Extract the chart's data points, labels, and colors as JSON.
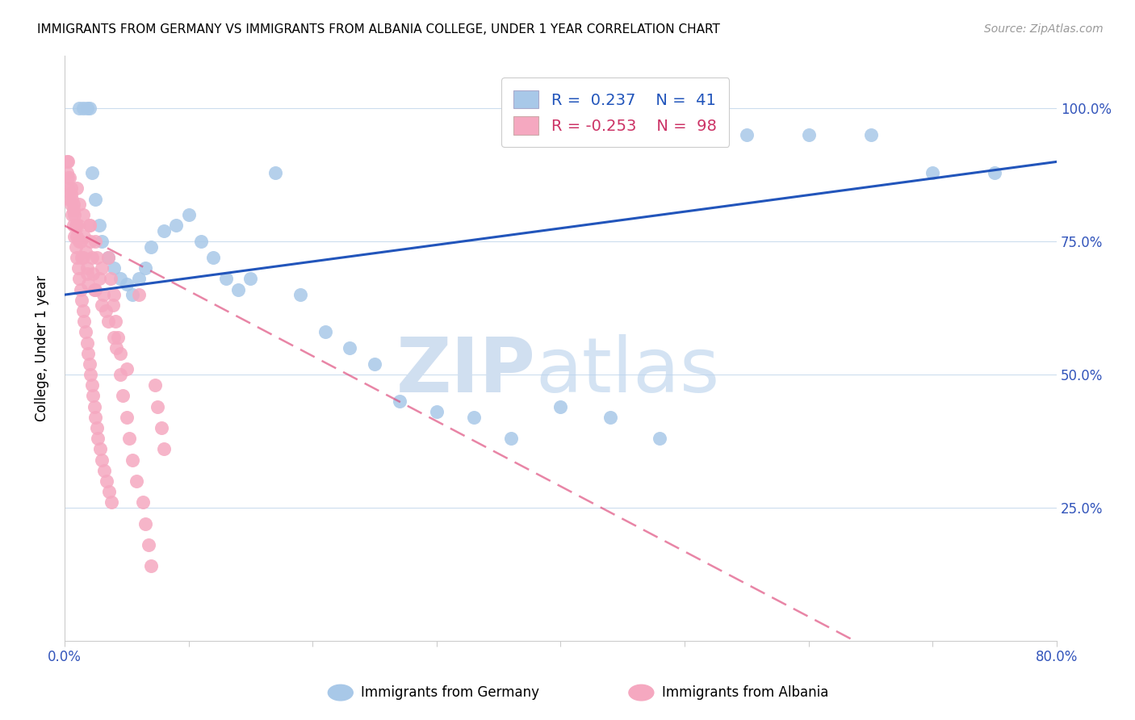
{
  "title": "IMMIGRANTS FROM GERMANY VS IMMIGRANTS FROM ALBANIA COLLEGE, UNDER 1 YEAR CORRELATION CHART",
  "source": "Source: ZipAtlas.com",
  "ylabel": "College, Under 1 year",
  "xlim": [
    0.0,
    80.0
  ],
  "ylim": [
    0.0,
    110.0
  ],
  "x_tick_positions": [
    0,
    10,
    20,
    30,
    40,
    50,
    60,
    70,
    80
  ],
  "x_tick_labels": [
    "0.0%",
    "",
    "",
    "",
    "",
    "",
    "",
    "",
    "80.0%"
  ],
  "y_tick_positions": [
    0,
    25,
    50,
    75,
    100
  ],
  "y_tick_labels_right": [
    "",
    "25.0%",
    "50.0%",
    "75.0%",
    "100.0%"
  ],
  "legend_R_germany": "0.237",
  "legend_N_germany": "41",
  "legend_R_albania": "-0.253",
  "legend_N_albania": "98",
  "germany_face_color": "#a8c8e8",
  "albania_face_color": "#f5a8c0",
  "germany_line_color": "#2255bb",
  "albania_line_color": "#dd4477",
  "legend_germany_label": "Immigrants from Germany",
  "legend_albania_label": "Immigrants from Albania",
  "germany_x": [
    1.2,
    1.5,
    1.8,
    2.0,
    2.2,
    2.5,
    2.8,
    3.0,
    3.5,
    4.0,
    4.5,
    5.0,
    5.5,
    6.0,
    6.5,
    7.0,
    8.0,
    9.0,
    10.0,
    11.0,
    12.0,
    13.0,
    14.0,
    15.0,
    17.0,
    19.0,
    21.0,
    23.0,
    25.0,
    27.0,
    30.0,
    33.0,
    36.0,
    40.0,
    44.0,
    48.0,
    55.0,
    60.0,
    65.0,
    70.0,
    75.0
  ],
  "germany_y": [
    100,
    100,
    100,
    100,
    88,
    83,
    78,
    75,
    72,
    70,
    68,
    67,
    65,
    68,
    70,
    74,
    77,
    78,
    80,
    75,
    72,
    68,
    66,
    68,
    88,
    65,
    58,
    55,
    52,
    45,
    43,
    42,
    38,
    44,
    42,
    38,
    95,
    95,
    95,
    88,
    88
  ],
  "albania_x": [
    0.2,
    0.3,
    0.3,
    0.4,
    0.4,
    0.5,
    0.5,
    0.6,
    0.6,
    0.7,
    0.7,
    0.8,
    0.8,
    0.9,
    0.9,
    1.0,
    1.0,
    1.0,
    1.1,
    1.1,
    1.2,
    1.2,
    1.3,
    1.3,
    1.4,
    1.4,
    1.5,
    1.5,
    1.6,
    1.6,
    1.7,
    1.7,
    1.8,
    1.8,
    1.9,
    1.9,
    2.0,
    2.0,
    2.1,
    2.1,
    2.2,
    2.2,
    2.3,
    2.3,
    2.4,
    2.4,
    2.5,
    2.5,
    2.6,
    2.6,
    2.7,
    2.8,
    2.9,
    3.0,
    3.0,
    3.1,
    3.2,
    3.3,
    3.4,
    3.5,
    3.6,
    3.7,
    3.8,
    3.9,
    4.0,
    4.1,
    4.2,
    4.3,
    4.5,
    4.7,
    5.0,
    5.2,
    5.5,
    5.8,
    6.0,
    6.3,
    6.5,
    6.8,
    7.0,
    7.3,
    7.5,
    7.8,
    8.0,
    0.2,
    0.3,
    0.5,
    0.7,
    1.0,
    1.2,
    1.5,
    1.8,
    2.0,
    2.5,
    3.0,
    3.5,
    4.0,
    4.5,
    5.0
  ],
  "albania_y": [
    88,
    90,
    85,
    87,
    83,
    85,
    82,
    83,
    80,
    82,
    78,
    80,
    76,
    78,
    74,
    76,
    72,
    85,
    70,
    78,
    68,
    82,
    66,
    75,
    64,
    72,
    62,
    80,
    60,
    76,
    58,
    73,
    56,
    70,
    54,
    67,
    52,
    78,
    50,
    75,
    48,
    72,
    46,
    69,
    44,
    66,
    42,
    75,
    40,
    72,
    38,
    68,
    36,
    70,
    34,
    65,
    32,
    62,
    30,
    72,
    28,
    68,
    26,
    63,
    65,
    60,
    55,
    57,
    50,
    46,
    42,
    38,
    34,
    30,
    65,
    26,
    22,
    18,
    14,
    48,
    44,
    40,
    36,
    90,
    87,
    84,
    81,
    78,
    75,
    72,
    69,
    78,
    66,
    63,
    60,
    57,
    54,
    51
  ]
}
